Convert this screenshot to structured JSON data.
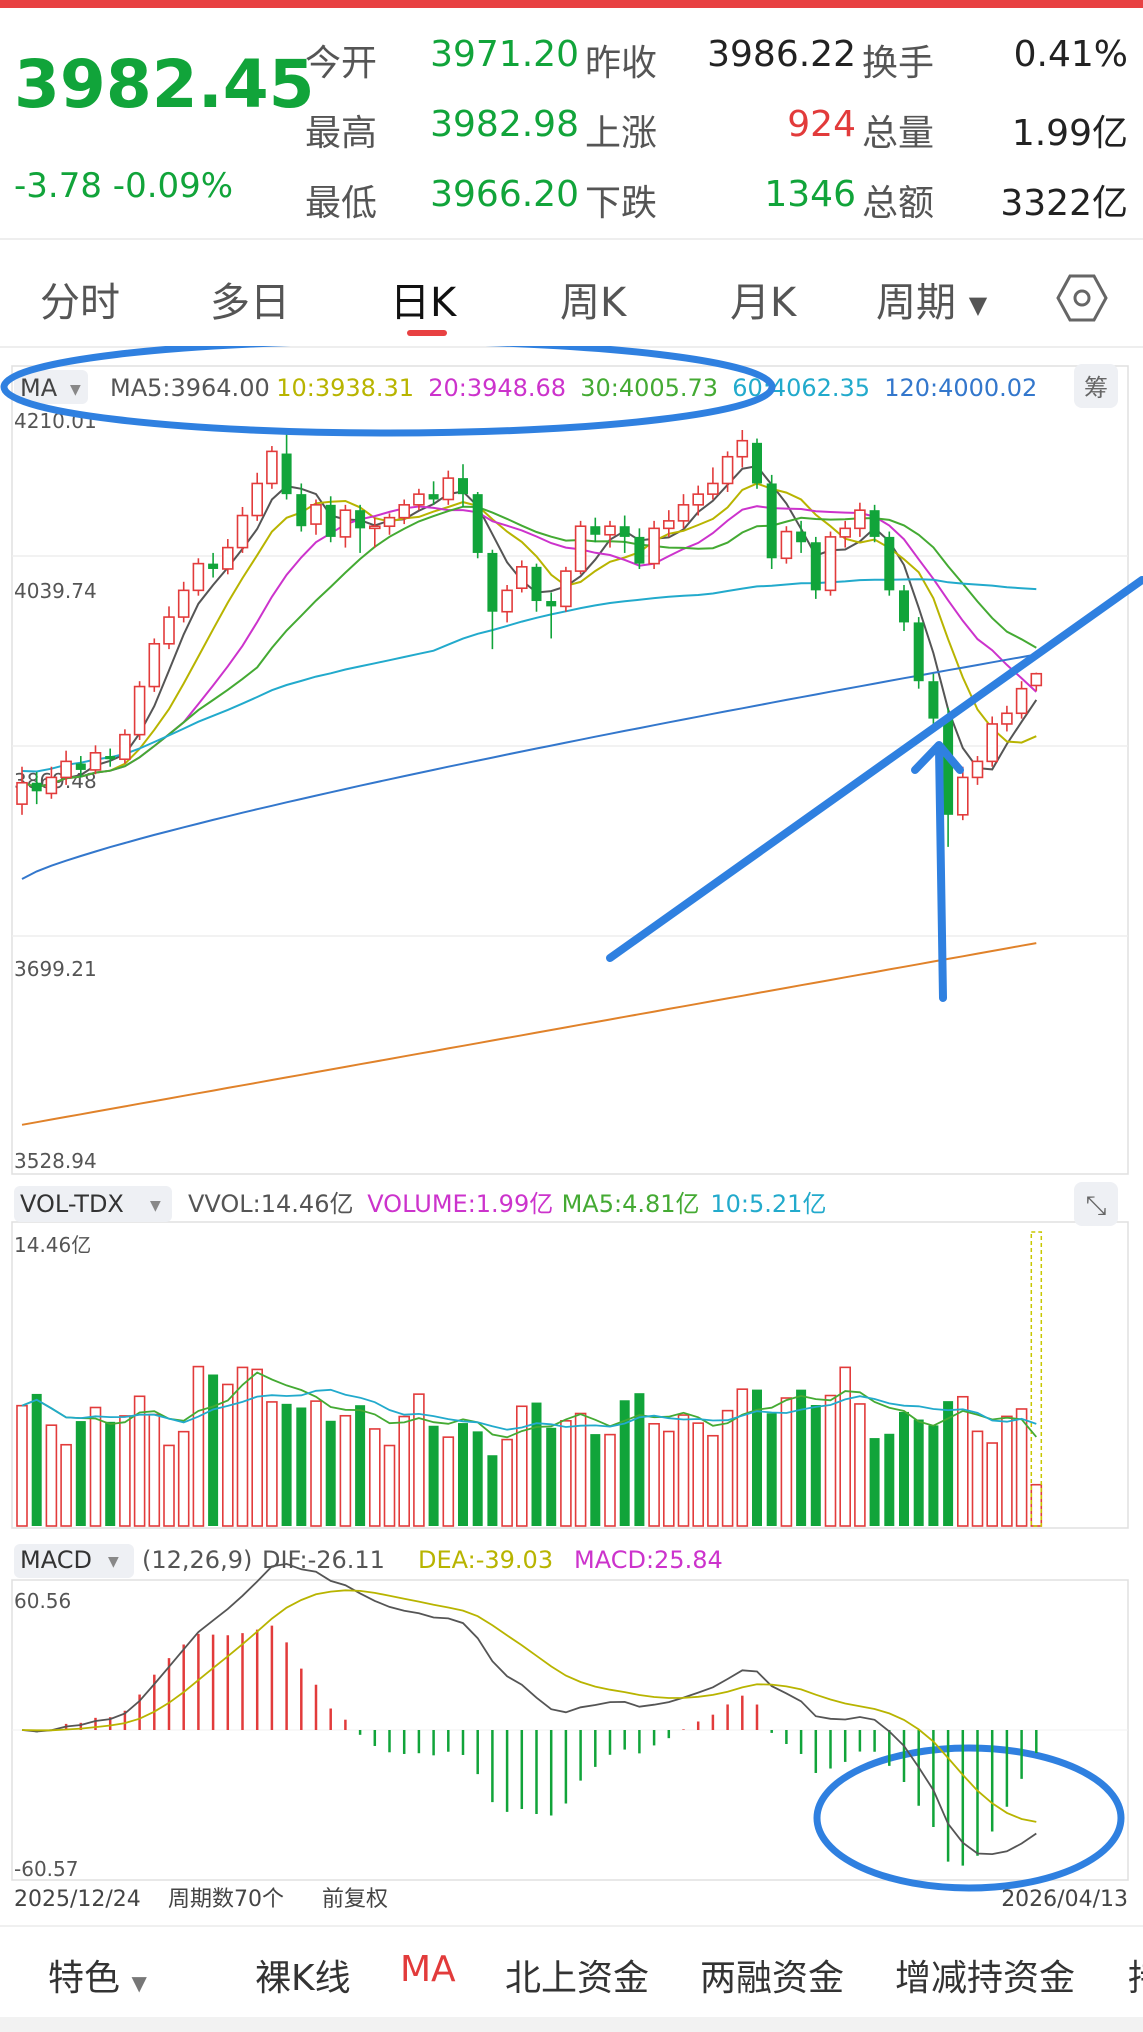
{
  "quote": {
    "price": "3982.45",
    "change": "-3.78",
    "change_pct": "-0.09%",
    "rows": [
      [
        {
          "label": "今开",
          "value": "3971.20",
          "color": "green"
        },
        {
          "label": "昨收",
          "value": "3986.22",
          "color": "dark"
        },
        {
          "label": "换手",
          "value": "0.41%",
          "color": "dark"
        }
      ],
      [
        {
          "label": "最高",
          "value": "3982.98",
          "color": "green"
        },
        {
          "label": "上涨",
          "value": "924",
          "color": "red"
        },
        {
          "label": "总量",
          "value": "1.99亿",
          "color": "dark"
        }
      ],
      [
        {
          "label": "最低",
          "value": "3966.20",
          "color": "green"
        },
        {
          "label": "下跌",
          "value": "1346",
          "color": "green"
        },
        {
          "label": "总额",
          "value": "3322亿",
          "color": "dark"
        }
      ]
    ]
  },
  "tabs": [
    "分时",
    "多日",
    "日K",
    "周K",
    "月K",
    "周期"
  ],
  "active_tab": "日K",
  "settings_icon": "hexagon-settings-icon",
  "ma_panel": {
    "selector": "MA",
    "legend": [
      {
        "text": "MA5:3964.00",
        "color": "#555555"
      },
      {
        "text": "10:3938.31",
        "color": "#b8b400"
      },
      {
        "text": "20:3948.68",
        "color": "#cc33cc"
      },
      {
        "text": "30:4005.73",
        "color": "#44aa33"
      },
      {
        "text": "60:4062.35",
        "color": "#22aacc"
      },
      {
        "text": "120:4000.02",
        "color": "#3377cc"
      }
    ],
    "chip_button": "筹",
    "y_ticks": [
      "4210.01",
      "4039.74",
      "3869.48",
      "3699.21",
      "3528.94"
    ]
  },
  "vol_panel": {
    "selector": "VOL-TDX",
    "legend": [
      {
        "text": "VVOL:14.46亿",
        "color": "#555555"
      },
      {
        "text": "VOLUME:1.99亿",
        "color": "#cc33cc"
      },
      {
        "text": "MA5:4.81亿",
        "color": "#44aa33"
      },
      {
        "text": "10:5.21亿",
        "color": "#22aacc"
      }
    ],
    "y_max": "14.46亿"
  },
  "macd_panel": {
    "selector": "MACD",
    "params": "(12,26,9)",
    "legend": [
      {
        "text": "DIF:-26.11",
        "color": "#555555"
      },
      {
        "text": "DEA:-39.03",
        "color": "#b8b400"
      },
      {
        "text": "MACD:25.84",
        "color": "#cc33cc"
      }
    ],
    "y_top": "60.56",
    "y_bottom": "-60.57"
  },
  "footer": {
    "start_date": "2025/12/24",
    "period_count": "周期数70个",
    "adjust": "前复权",
    "end_date": "2026/04/13"
  },
  "bottom_nav": [
    "特色",
    "裸K线",
    "MA",
    "北上资金",
    "两融资金",
    "增减持资金",
    "持"
  ],
  "bottom_nav_active": "MA",
  "colors": {
    "up": "#e23b3b",
    "down": "#11a43a",
    "annotation": "#2f80e0"
  },
  "chart_data": {
    "type": "candlestick",
    "start_date": "2025/12/24",
    "end_date": "2026/04/13",
    "bars": 70,
    "ylim": [
      3528.94,
      4210.01
    ],
    "candles": [
      [
        3860,
        3880,
        3895,
        3850
      ],
      [
        3880,
        3872,
        3890,
        3860
      ],
      [
        3870,
        3885,
        3895,
        3865
      ],
      [
        3885,
        3900,
        3910,
        3878
      ],
      [
        3898,
        3892,
        3905,
        3885
      ],
      [
        3892,
        3908,
        3915,
        3888
      ],
      [
        3905,
        3902,
        3912,
        3895
      ],
      [
        3902,
        3925,
        3930,
        3898
      ],
      [
        3925,
        3970,
        3975,
        3920
      ],
      [
        3970,
        4010,
        4015,
        3965
      ],
      [
        4010,
        4035,
        4045,
        4005
      ],
      [
        4035,
        4060,
        4068,
        4030
      ],
      [
        4060,
        4085,
        4090,
        4055
      ],
      [
        4085,
        4080,
        4095,
        4072
      ],
      [
        4080,
        4100,
        4108,
        4075
      ],
      [
        4100,
        4130,
        4138,
        4095
      ],
      [
        4130,
        4160,
        4170,
        4125
      ],
      [
        4160,
        4190,
        4195,
        4155
      ],
      [
        4188,
        4150,
        4210,
        4145
      ],
      [
        4150,
        4120,
        4160,
        4115
      ],
      [
        4122,
        4140,
        4145,
        4112
      ],
      [
        4140,
        4110,
        4148,
        4105
      ],
      [
        4110,
        4135,
        4140,
        4100
      ],
      [
        4135,
        4118,
        4140,
        4095
      ],
      [
        4118,
        4120,
        4128,
        4100
      ],
      [
        4120,
        4128,
        4132,
        4112
      ],
      [
        4128,
        4140,
        4145,
        4122
      ],
      [
        4140,
        4150,
        4155,
        4135
      ],
      [
        4150,
        4145,
        4162,
        4140
      ],
      [
        4145,
        4165,
        4172,
        4140
      ],
      [
        4165,
        4150,
        4178,
        4138
      ],
      [
        4150,
        4095,
        4152,
        4090
      ],
      [
        4095,
        4040,
        4098,
        4005
      ],
      [
        4040,
        4060,
        4065,
        4030
      ],
      [
        4062,
        4082,
        4088,
        4058
      ],
      [
        4082,
        4050,
        4085,
        4040
      ],
      [
        4050,
        4045,
        4058,
        4015
      ],
      [
        4045,
        4078,
        4082,
        4040
      ],
      [
        4078,
        4120,
        4125,
        4075
      ],
      [
        4120,
        4112,
        4128,
        4105
      ],
      [
        4112,
        4120,
        4125,
        4100
      ],
      [
        4120,
        4110,
        4130,
        4095
      ],
      [
        4110,
        4085,
        4118,
        4080
      ],
      [
        4085,
        4118,
        4125,
        4080
      ],
      [
        4118,
        4125,
        4135,
        4110
      ],
      [
        4125,
        4140,
        4150,
        4118
      ],
      [
        4140,
        4150,
        4158,
        4130
      ],
      [
        4150,
        4160,
        4175,
        4145
      ],
      [
        4160,
        4185,
        4190,
        4152
      ],
      [
        4185,
        4200,
        4210,
        4175
      ],
      [
        4198,
        4160,
        4202,
        4155
      ],
      [
        4160,
        4090,
        4168,
        4080
      ],
      [
        4090,
        4115,
        4120,
        4085
      ],
      [
        4115,
        4105,
        4125,
        4095
      ],
      [
        4105,
        4060,
        4110,
        4052
      ],
      [
        4060,
        4110,
        4115,
        4055
      ],
      [
        4110,
        4118,
        4125,
        4100
      ],
      [
        4118,
        4135,
        4142,
        4110
      ],
      [
        4135,
        4110,
        4140,
        4105
      ],
      [
        4110,
        4060,
        4115,
        4055
      ],
      [
        4060,
        4030,
        4065,
        4022
      ],
      [
        4030,
        3975,
        4035,
        3968
      ],
      [
        3975,
        3940,
        3982,
        3930
      ],
      [
        3940,
        3850,
        3950,
        3820
      ],
      [
        3850,
        3885,
        3895,
        3845
      ],
      [
        3885,
        3900,
        3905,
        3878
      ],
      [
        3900,
        3935,
        3942,
        3895
      ],
      [
        3935,
        3945,
        3952,
        3928
      ],
      [
        3945,
        3968,
        3975,
        3940
      ],
      [
        3971,
        3982,
        3983,
        3966
      ]
    ],
    "ma": {
      "MA5": {
        "color": "#555555",
        "start": 3855,
        "end": 3964
      },
      "MA10": {
        "color": "#b8b400",
        "start": 3840,
        "end": 3938
      },
      "MA20": {
        "color": "#cc33cc",
        "start": 3830,
        "end": 3949
      },
      "MA30": {
        "color": "#44aa33",
        "start": 3820,
        "end": 4006
      },
      "MA60": {
        "color": "#22aacc",
        "start": 3900,
        "end": 4062
      },
      "MA120": {
        "color": "#3377cc",
        "start": 3790,
        "end": 4000
      },
      "MA250": {
        "color": "#e0822a",
        "start": 3560,
        "end": 3730
      }
    },
    "volume_ylim": [
      0,
      14.46
    ],
    "macd_ylim": [
      -60.57,
      60.56
    ]
  }
}
